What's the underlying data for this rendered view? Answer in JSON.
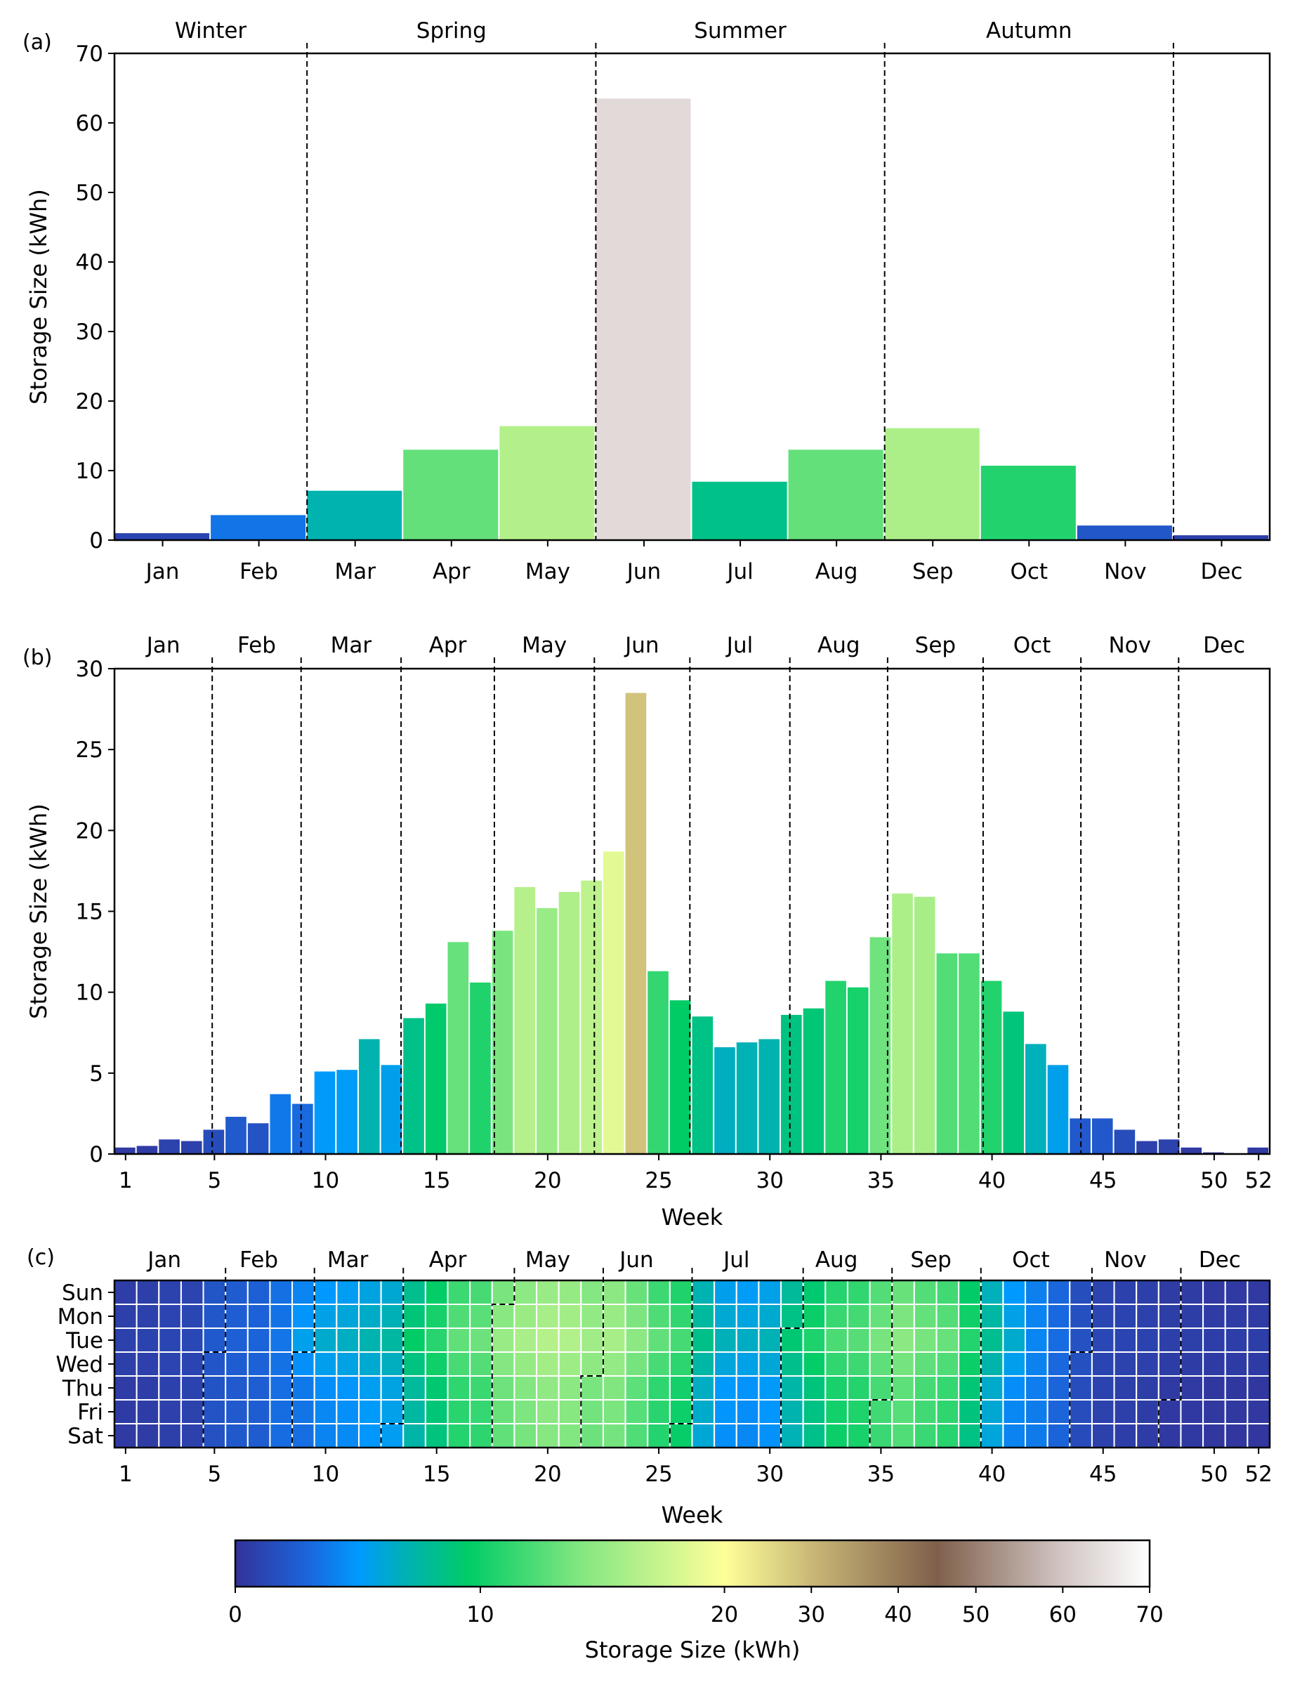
{
  "chart_data": [
    {
      "panel": "(a)",
      "type": "bar",
      "ylabel": "Storage Size (kWh)",
      "ylim": [
        0,
        70
      ],
      "yticks": [
        0,
        10,
        20,
        30,
        40,
        50,
        60,
        70
      ],
      "categories": [
        "Jan",
        "Feb",
        "Mar",
        "Apr",
        "May",
        "Jun",
        "Jul",
        "Aug",
        "Sep",
        "Oct",
        "Nov",
        "Dec"
      ],
      "values": [
        1.0,
        3.6,
        7.1,
        13.0,
        16.4,
        63.5,
        8.4,
        13.0,
        16.1,
        10.7,
        2.1,
        0.7
      ],
      "seasons": [
        "Winter",
        "Spring",
        "Summer",
        "Autumn"
      ],
      "colormap": "terrain-like, shared colorbar"
    },
    {
      "panel": "(b)",
      "type": "bar",
      "xlabel": "Week",
      "ylabel": "Storage Size (kWh)",
      "ylim": [
        0,
        30
      ],
      "yticks": [
        0,
        5,
        10,
        15,
        20,
        25,
        30
      ],
      "xticks": [
        1,
        5,
        10,
        15,
        20,
        25,
        30,
        35,
        40,
        45,
        50,
        52
      ],
      "months": [
        "Jan",
        "Feb",
        "Mar",
        "Apr",
        "May",
        "Jun",
        "Jul",
        "Aug",
        "Sep",
        "Oct",
        "Nov",
        "Dec"
      ],
      "x": [
        1,
        2,
        3,
        4,
        5,
        6,
        7,
        8,
        9,
        10,
        11,
        12,
        13,
        14,
        15,
        16,
        17,
        18,
        19,
        20,
        21,
        22,
        23,
        24,
        25,
        26,
        27,
        28,
        29,
        30,
        31,
        32,
        33,
        34,
        35,
        36,
        37,
        38,
        39,
        40,
        41,
        42,
        43,
        44,
        45,
        46,
        47,
        48,
        49,
        50,
        51,
        52
      ],
      "values": [
        0.4,
        0.5,
        0.9,
        0.8,
        1.5,
        2.3,
        1.9,
        3.7,
        3.1,
        5.1,
        5.2,
        7.1,
        5.5,
        8.4,
        9.3,
        13.1,
        10.6,
        13.8,
        16.5,
        15.2,
        16.2,
        16.9,
        18.7,
        28.5,
        11.3,
        9.5,
        8.5,
        6.6,
        6.9,
        7.1,
        8.6,
        9.0,
        10.7,
        10.3,
        13.4,
        16.1,
        15.9,
        12.4,
        12.4,
        10.7,
        8.8,
        6.8,
        5.5,
        2.2,
        2.2,
        1.5,
        0.8,
        0.9,
        0.4,
        0.1,
        0.0,
        0.4
      ]
    },
    {
      "panel": "(c)",
      "type": "heatmap",
      "xlabel": "Week",
      "xticks": [
        1,
        5,
        10,
        15,
        20,
        25,
        30,
        35,
        40,
        45,
        50,
        52
      ],
      "days": [
        "Sun",
        "Mon",
        "Tue",
        "Wed",
        "Thu",
        "Fri",
        "Sat"
      ],
      "months": [
        "Jan",
        "Feb",
        "Mar",
        "Apr",
        "May",
        "Jun",
        "Jul",
        "Aug",
        "Sep",
        "Oct",
        "Nov",
        "Dec"
      ],
      "weekly_values": [
        0.6,
        0.7,
        0.9,
        1.0,
        2.0,
        2.4,
        2.6,
        3.4,
        4.2,
        5.0,
        5.3,
        5.8,
        6.2,
        8.2,
        9.6,
        11.6,
        12.0,
        13.8,
        14.6,
        15.2,
        15.0,
        14.2,
        14.5,
        13.2,
        11.6,
        10.6,
        7.0,
        5.5,
        5.2,
        5.6,
        7.8,
        9.2,
        10.8,
        11.2,
        12.4,
        13.2,
        12.4,
        11.8,
        9.4,
        6.8,
        5.0,
        4.0,
        3.0,
        1.6,
        1.0,
        0.8,
        0.7,
        0.5,
        0.5,
        0.4,
        0.4,
        0.4
      ],
      "day_offsets": [
        0.0,
        0.3,
        0.6,
        0.2,
        -0.2,
        -0.3,
        -0.4
      ],
      "colorbar": {
        "label": "Storage Size (kWh)",
        "ticks": [
          0,
          10,
          20,
          30,
          40,
          50,
          60,
          70
        ],
        "stops": [
          {
            "v": 0,
            "c": "#333399"
          },
          {
            "v": 3,
            "c": "#1a66dd"
          },
          {
            "v": 5,
            "c": "#0099ff"
          },
          {
            "v": 7,
            "c": "#00b2b2"
          },
          {
            "v": 9.5,
            "c": "#00cc66"
          },
          {
            "v": 14,
            "c": "#80e680"
          },
          {
            "v": 20,
            "c": "#ffff99"
          },
          {
            "v": 30,
            "c": "#c9b877"
          },
          {
            "v": 45,
            "c": "#80604c"
          },
          {
            "v": 60,
            "c": "#d2c6c4"
          },
          {
            "v": 70,
            "c": "#ffffff"
          }
        ]
      }
    }
  ]
}
